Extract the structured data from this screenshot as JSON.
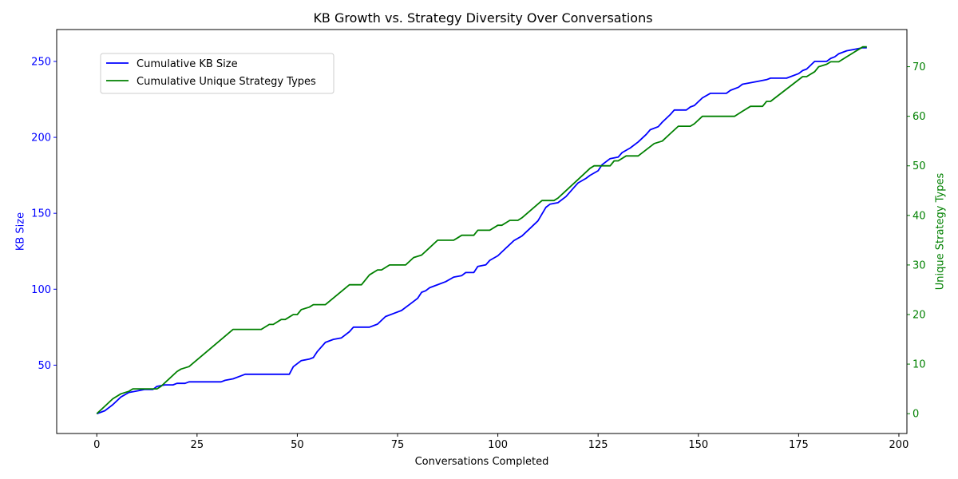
{
  "chart_data": {
    "type": "line",
    "title": "KB Growth vs. Strategy Diversity Over Conversations",
    "xlabel": "Conversations Completed",
    "ylabel_left": "KB Size",
    "ylabel_right": "Unique Strategy Types",
    "xlim": [
      -10,
      202
    ],
    "ylim_left": [
      5,
      271
    ],
    "ylim_right": [
      -4,
      77.5
    ],
    "xticks": [
      0,
      25,
      50,
      75,
      100,
      125,
      150,
      175,
      200
    ],
    "yticks_left": [
      50,
      100,
      150,
      200,
      250
    ],
    "yticks_right": [
      0,
      10,
      20,
      30,
      40,
      50,
      60,
      70
    ],
    "grid": false,
    "legend_position": "upper-left",
    "colors": {
      "left_axis": "#0000ff",
      "right_axis": "#008000"
    },
    "series": [
      {
        "name": "Cumulative KB Size",
        "axis": "left",
        "color": "#0000ff",
        "points": [
          [
            0,
            18
          ],
          [
            2,
            20
          ],
          [
            4,
            24
          ],
          [
            6,
            29
          ],
          [
            8,
            32
          ],
          [
            10,
            33
          ],
          [
            12,
            34
          ],
          [
            14,
            34
          ],
          [
            15,
            36
          ],
          [
            17,
            37
          ],
          [
            19,
            37
          ],
          [
            20,
            38
          ],
          [
            22,
            38
          ],
          [
            23,
            39
          ],
          [
            25,
            39
          ],
          [
            31,
            39
          ],
          [
            32,
            40
          ],
          [
            34,
            41
          ],
          [
            36,
            43
          ],
          [
            37,
            44
          ],
          [
            40,
            44
          ],
          [
            48,
            44
          ],
          [
            49,
            49
          ],
          [
            51,
            53
          ],
          [
            53,
            54
          ],
          [
            54,
            55
          ],
          [
            55,
            59
          ],
          [
            57,
            65
          ],
          [
            59,
            67
          ],
          [
            61,
            68
          ],
          [
            63,
            72
          ],
          [
            64,
            75
          ],
          [
            68,
            75
          ],
          [
            70,
            77
          ],
          [
            72,
            82
          ],
          [
            74,
            84
          ],
          [
            76,
            86
          ],
          [
            78,
            90
          ],
          [
            80,
            94
          ],
          [
            81,
            98
          ],
          [
            82,
            99
          ],
          [
            83,
            101
          ],
          [
            85,
            103
          ],
          [
            87,
            105
          ],
          [
            89,
            108
          ],
          [
            91,
            109
          ],
          [
            92,
            111
          ],
          [
            94,
            111
          ],
          [
            95,
            115
          ],
          [
            97,
            116
          ],
          [
            98,
            119
          ],
          [
            100,
            122
          ],
          [
            102,
            127
          ],
          [
            104,
            132
          ],
          [
            106,
            135
          ],
          [
            108,
            140
          ],
          [
            110,
            145
          ],
          [
            112,
            154
          ],
          [
            113,
            156
          ],
          [
            115,
            157
          ],
          [
            117,
            161
          ],
          [
            119,
            167
          ],
          [
            120,
            170
          ],
          [
            122,
            173
          ],
          [
            123,
            175
          ],
          [
            125,
            178
          ],
          [
            126,
            182
          ],
          [
            128,
            186
          ],
          [
            130,
            187
          ],
          [
            131,
            190
          ],
          [
            133,
            193
          ],
          [
            135,
            197
          ],
          [
            137,
            202
          ],
          [
            138,
            205
          ],
          [
            140,
            207
          ],
          [
            141,
            210
          ],
          [
            143,
            215
          ],
          [
            144,
            218
          ],
          [
            147,
            218
          ],
          [
            148,
            220
          ],
          [
            149,
            221
          ],
          [
            151,
            226
          ],
          [
            153,
            229
          ],
          [
            157,
            229
          ],
          [
            158,
            231
          ],
          [
            160,
            233
          ],
          [
            161,
            235
          ],
          [
            163,
            236
          ],
          [
            165,
            237
          ],
          [
            167,
            238
          ],
          [
            168,
            239
          ],
          [
            172,
            239
          ],
          [
            173,
            240
          ],
          [
            175,
            242
          ],
          [
            176,
            244
          ],
          [
            177,
            245
          ],
          [
            179,
            250
          ],
          [
            182,
            250
          ],
          [
            183,
            252
          ],
          [
            184,
            253
          ],
          [
            185,
            255
          ],
          [
            187,
            257
          ],
          [
            189,
            258
          ],
          [
            191,
            259
          ],
          [
            192,
            259
          ]
        ]
      },
      {
        "name": "Cumulative Unique Strategy Types",
        "axis": "right",
        "color": "#008000",
        "points": [
          [
            0,
            0
          ],
          [
            2,
            1.5
          ],
          [
            4,
            3
          ],
          [
            6,
            4
          ],
          [
            8,
            4.5
          ],
          [
            9,
            5
          ],
          [
            15,
            5
          ],
          [
            16,
            5.5
          ],
          [
            18,
            7
          ],
          [
            20,
            8.5
          ],
          [
            21,
            9
          ],
          [
            23,
            9.5
          ],
          [
            34,
            17
          ],
          [
            40,
            17
          ],
          [
            41,
            17
          ],
          [
            43,
            18
          ],
          [
            44,
            18
          ],
          [
            46,
            19
          ],
          [
            47,
            19
          ],
          [
            49,
            20
          ],
          [
            50,
            20
          ],
          [
            51,
            21
          ],
          [
            53,
            21.5
          ],
          [
            54,
            22
          ],
          [
            57,
            22
          ],
          [
            63,
            26
          ],
          [
            66,
            26
          ],
          [
            68,
            28
          ],
          [
            70,
            29
          ],
          [
            71,
            29
          ],
          [
            73,
            30
          ],
          [
            77,
            30
          ],
          [
            79,
            31.5
          ],
          [
            81,
            32
          ],
          [
            83,
            33.5
          ],
          [
            85,
            35
          ],
          [
            86,
            35
          ],
          [
            89,
            35
          ],
          [
            90,
            35.5
          ],
          [
            91,
            36
          ],
          [
            94,
            36
          ],
          [
            95,
            37
          ],
          [
            97,
            37
          ],
          [
            98,
            37
          ],
          [
            100,
            38
          ],
          [
            101,
            38
          ],
          [
            102,
            38.5
          ],
          [
            103,
            39
          ],
          [
            105,
            39
          ],
          [
            106,
            39.5
          ],
          [
            111,
            43
          ],
          [
            114,
            43
          ],
          [
            115,
            43.5
          ],
          [
            117,
            45
          ],
          [
            121,
            48
          ],
          [
            123,
            49.5
          ],
          [
            124,
            50
          ],
          [
            128,
            50
          ],
          [
            129,
            51
          ],
          [
            130,
            51
          ],
          [
            132,
            52
          ],
          [
            135,
            52
          ],
          [
            139,
            54.5
          ],
          [
            141,
            55
          ],
          [
            143,
            56.5
          ],
          [
            145,
            58
          ],
          [
            148,
            58
          ],
          [
            149,
            58.5
          ],
          [
            151,
            60
          ],
          [
            157,
            60
          ],
          [
            159,
            60
          ],
          [
            161,
            61
          ],
          [
            163,
            62
          ],
          [
            166,
            62
          ],
          [
            167,
            63
          ],
          [
            168,
            63
          ],
          [
            176,
            68
          ],
          [
            177,
            68
          ],
          [
            178,
            68.5
          ],
          [
            179,
            69
          ],
          [
            180,
            70
          ],
          [
            182,
            70.5
          ],
          [
            183,
            71
          ],
          [
            185,
            71
          ],
          [
            187,
            72
          ],
          [
            188,
            72.5
          ],
          [
            189,
            73
          ],
          [
            190,
            73.5
          ],
          [
            191,
            74
          ],
          [
            192,
            74
          ]
        ]
      }
    ]
  }
}
